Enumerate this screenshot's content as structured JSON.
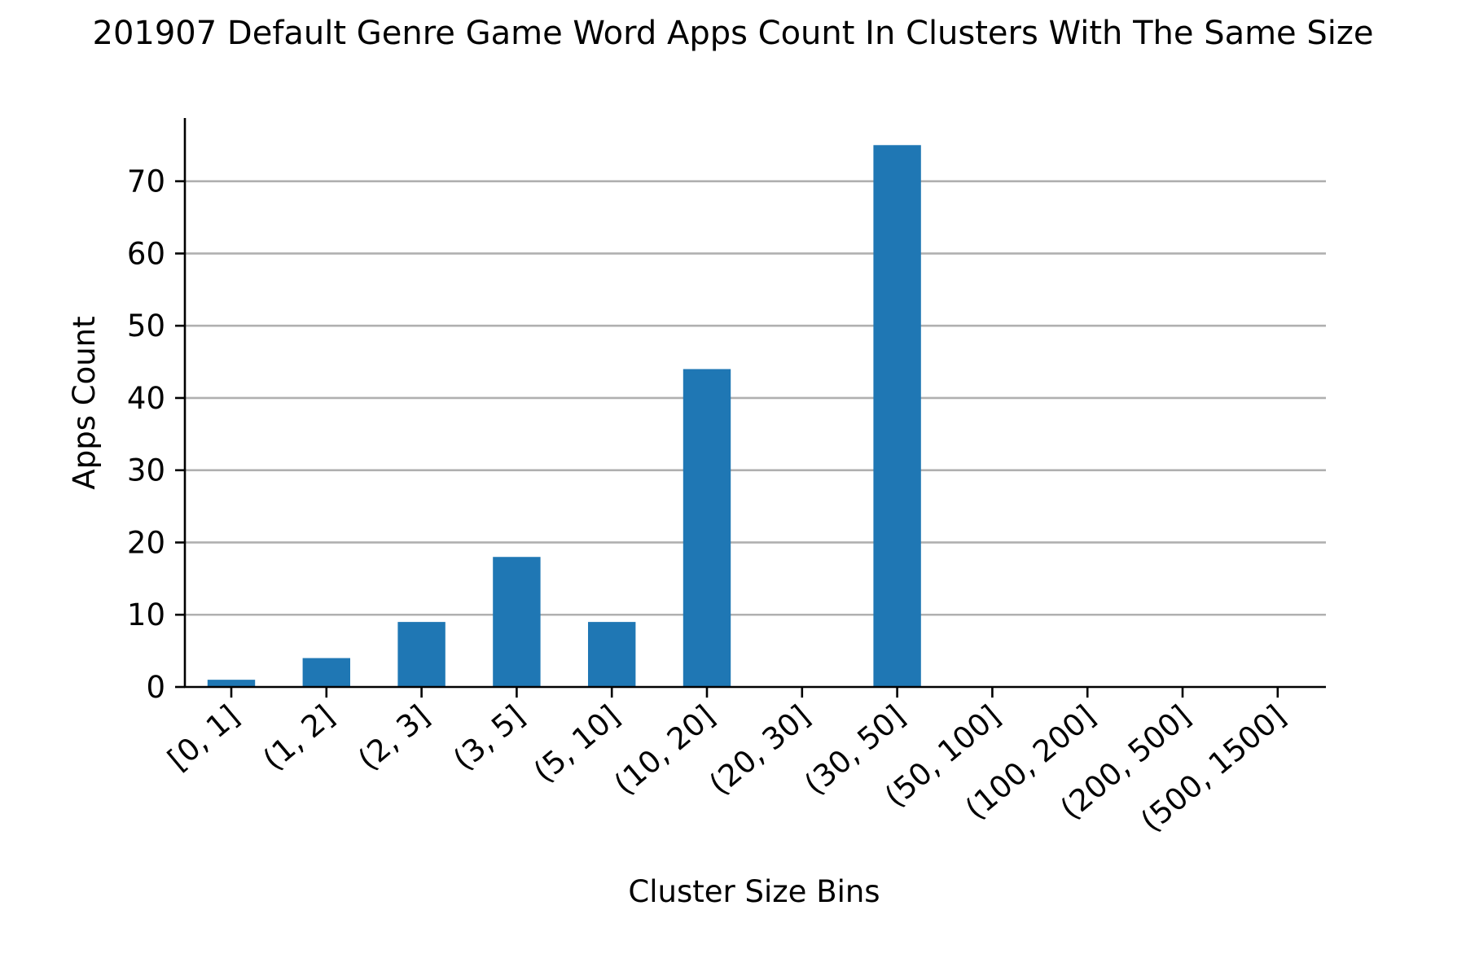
{
  "chart_data": {
    "type": "bar",
    "title": "201907 Default Genre Game Word Apps Count In Clusters With The Same Size",
    "xlabel": "Cluster Size Bins",
    "ylabel": "Apps Count",
    "categories": [
      "[0, 1]",
      "(1, 2]",
      "(2, 3]",
      "(3, 5]",
      "(5, 10]",
      "(10, 20]",
      "(20, 30]",
      "(30, 50]",
      "(50, 100]",
      "(100, 200]",
      "(200, 500]",
      "(500, 1500]"
    ],
    "values": [
      1,
      4,
      9,
      18,
      9,
      44,
      0,
      75,
      0,
      0,
      0,
      0
    ],
    "ylim": [
      0,
      78.75
    ],
    "yticks": [
      0,
      10,
      20,
      30,
      40,
      50,
      60,
      70
    ],
    "grid": "horizontal",
    "legend": "none",
    "colors": {
      "bar": "#1f77b4",
      "grid": "#b0b0b0",
      "axis": "#000000"
    }
  }
}
